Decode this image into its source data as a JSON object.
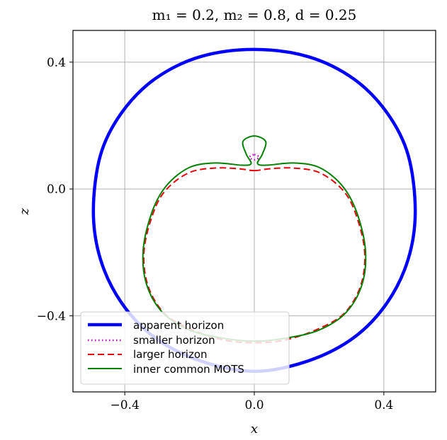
{
  "chart_data": {
    "type": "line",
    "title": "m₁ = 0.2, m₂ = 0.8, d = 0.25",
    "xlabel": "x",
    "ylabel": "z",
    "xlim": [
      -0.56,
      0.56
    ],
    "ylim": [
      -0.64,
      0.5
    ],
    "xticks": [
      -0.4,
      0.0,
      0.4
    ],
    "yticks": [
      -0.4,
      0.0,
      0.4
    ],
    "xtick_labels": [
      "−0.4",
      "0.0",
      "0.4"
    ],
    "ytick_labels": [
      "−0.4",
      "0.0",
      "0.4"
    ],
    "grid": true,
    "legend_position": "lower-left",
    "series": [
      {
        "name": "apparent horizon",
        "color": "#0000ff",
        "style": "solid-thick",
        "x": [
          0.0,
          0.167,
          0.307,
          0.41,
          0.475,
          0.497,
          0.475,
          0.41,
          0.307,
          0.167,
          0.0,
          -0.167,
          -0.307,
          -0.41,
          -0.475,
          -0.497,
          -0.475,
          -0.41,
          -0.307,
          -0.167,
          0.0
        ],
        "z": [
          0.44,
          0.417,
          0.347,
          0.24,
          0.107,
          -0.07,
          -0.222,
          -0.359,
          -0.469,
          -0.542,
          -0.575,
          -0.542,
          -0.469,
          -0.359,
          -0.222,
          -0.07,
          0.107,
          0.24,
          0.347,
          0.417,
          0.44
        ]
      },
      {
        "name": "smaller horizon",
        "color": "#c000c0",
        "style": "dotted",
        "x": [
          0.0,
          0.008,
          0.015,
          0.008,
          0.0,
          -0.008,
          -0.015,
          -0.008,
          0.0
        ],
        "z": [
          0.108,
          0.106,
          0.1,
          0.094,
          0.092,
          0.094,
          0.1,
          0.106,
          0.108
        ]
      },
      {
        "name": "larger horizon",
        "color": "#e8000b",
        "style": "dashed",
        "x": [
          0.0,
          0.05,
          0.12,
          0.2,
          0.27,
          0.31,
          0.34,
          0.33,
          0.28,
          0.2,
          0.1,
          0.0,
          -0.1,
          -0.2,
          -0.28,
          -0.33,
          -0.34,
          -0.31,
          -0.27,
          -0.2,
          -0.12,
          -0.05,
          0.0
        ],
        "z": [
          0.058,
          0.064,
          0.066,
          0.052,
          0.0,
          -0.07,
          -0.19,
          -0.3,
          -0.39,
          -0.44,
          -0.475,
          -0.485,
          -0.475,
          -0.44,
          -0.39,
          -0.3,
          -0.19,
          -0.07,
          0.0,
          0.052,
          0.066,
          0.064,
          0.058
        ]
      },
      {
        "name": "inner common MOTS",
        "color": "#008000",
        "style": "solid",
        "x": [
          0.0,
          0.035,
          0.025,
          0.01,
          0.04,
          0.12,
          0.2,
          0.27,
          0.315,
          0.343,
          0.333,
          0.283,
          0.2,
          0.1,
          0.0,
          -0.1,
          -0.2,
          -0.283,
          -0.333,
          -0.343,
          -0.315,
          -0.27,
          -0.2,
          -0.12,
          -0.04,
          -0.01,
          -0.025,
          -0.035,
          0.0
        ],
        "z": [
          0.167,
          0.15,
          0.11,
          0.08,
          0.075,
          0.082,
          0.068,
          0.012,
          -0.07,
          -0.19,
          -0.3,
          -0.39,
          -0.445,
          -0.47,
          -0.48,
          -0.47,
          -0.445,
          -0.39,
          -0.3,
          -0.19,
          -0.07,
          0.012,
          0.068,
          0.082,
          0.075,
          0.08,
          0.11,
          0.15,
          0.167
        ]
      }
    ]
  }
}
